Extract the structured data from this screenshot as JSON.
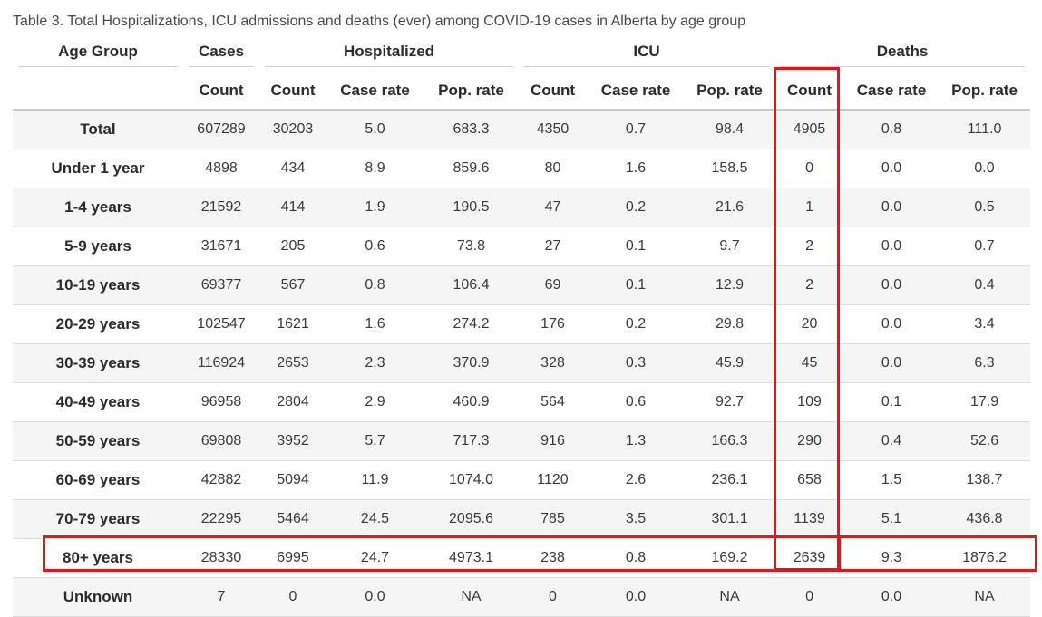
{
  "caption": "Table 3. Total Hospitalizations, ICU admissions and deaths (ever) among COVID-19 cases in Alberta by age group",
  "header_groups": {
    "age_group": "Age Group",
    "cases": "Cases",
    "hospitalized": "Hospitalized",
    "icu": "ICU",
    "deaths": "Deaths"
  },
  "sub_headers": [
    "Count",
    "Count",
    "Case rate",
    "Pop. rate",
    "Count",
    "Case rate",
    "Pop. rate",
    "Count",
    "Case rate",
    "Pop. rate"
  ],
  "rows": [
    {
      "age": "Total",
      "v": [
        "607289",
        "30203",
        "5.0",
        "683.3",
        "4350",
        "0.7",
        "98.4",
        "4905",
        "0.8",
        "111.0"
      ]
    },
    {
      "age": "Under 1 year",
      "v": [
        "4898",
        "434",
        "8.9",
        "859.6",
        "80",
        "1.6",
        "158.5",
        "0",
        "0.0",
        "0.0"
      ]
    },
    {
      "age": "1-4 years",
      "v": [
        "21592",
        "414",
        "1.9",
        "190.5",
        "47",
        "0.2",
        "21.6",
        "1",
        "0.0",
        "0.5"
      ]
    },
    {
      "age": "5-9 years",
      "v": [
        "31671",
        "205",
        "0.6",
        "73.8",
        "27",
        "0.1",
        "9.7",
        "2",
        "0.0",
        "0.7"
      ]
    },
    {
      "age": "10-19 years",
      "v": [
        "69377",
        "567",
        "0.8",
        "106.4",
        "69",
        "0.1",
        "12.9",
        "2",
        "0.0",
        "0.4"
      ]
    },
    {
      "age": "20-29 years",
      "v": [
        "102547",
        "1621",
        "1.6",
        "274.2",
        "176",
        "0.2",
        "29.8",
        "20",
        "0.0",
        "3.4"
      ]
    },
    {
      "age": "30-39 years",
      "v": [
        "116924",
        "2653",
        "2.3",
        "370.9",
        "328",
        "0.3",
        "45.9",
        "45",
        "0.0",
        "6.3"
      ]
    },
    {
      "age": "40-49 years",
      "v": [
        "96958",
        "2804",
        "2.9",
        "460.9",
        "564",
        "0.6",
        "92.7",
        "109",
        "0.1",
        "17.9"
      ]
    },
    {
      "age": "50-59 years",
      "v": [
        "69808",
        "3952",
        "5.7",
        "717.3",
        "916",
        "1.3",
        "166.3",
        "290",
        "0.4",
        "52.6"
      ]
    },
    {
      "age": "60-69 years",
      "v": [
        "42882",
        "5094",
        "11.9",
        "1074.0",
        "1120",
        "2.6",
        "236.1",
        "658",
        "1.5",
        "138.7"
      ]
    },
    {
      "age": "70-79 years",
      "v": [
        "22295",
        "5464",
        "24.5",
        "2095.6",
        "785",
        "3.5",
        "301.1",
        "1139",
        "5.1",
        "436.8"
      ]
    },
    {
      "age": "80+ years",
      "v": [
        "28330",
        "6995",
        "24.7",
        "4973.1",
        "238",
        "0.8",
        "169.2",
        "2639",
        "9.3",
        "1876.2"
      ]
    },
    {
      "age": "Unknown",
      "v": [
        "7",
        "0",
        "0.0",
        "NA",
        "0",
        "0.0",
        "NA",
        "0",
        "0.0",
        "NA"
      ]
    }
  ],
  "highlight_color": "#e0151f"
}
